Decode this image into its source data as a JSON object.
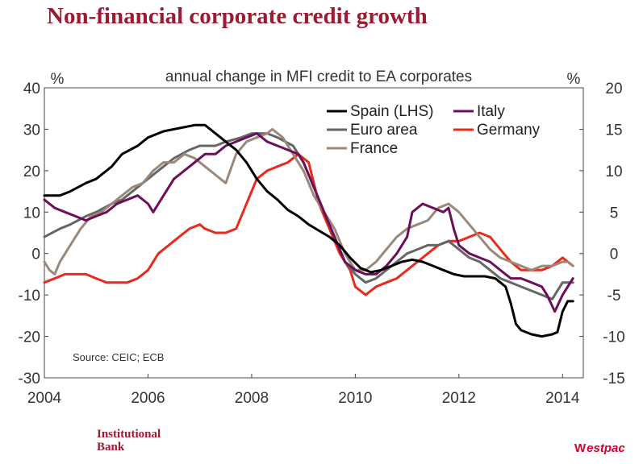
{
  "page": {
    "title": "Non-financial corporate credit growth",
    "brand_left_line1": "Institutional",
    "brand_left_line2": "Bank",
    "brand_right_mark": "W",
    "brand_right_text": "estpac"
  },
  "colors": {
    "title": "#9b1b30",
    "spain": "#000000",
    "italy": "#6b0f5a",
    "euro_area": "#666666",
    "germany": "#e8291c",
    "france": "#9c8878",
    "brand_red": "#d5002b"
  },
  "chart_data": {
    "type": "line",
    "title": "annual change in MFI credit to EA corporates",
    "left_axis_label": "%",
    "right_axis_label": "%",
    "source": "Source: CEIC; ECB",
    "xlim": [
      2004,
      2014.4
    ],
    "x_ticks": [
      2004,
      2006,
      2008,
      2010,
      2012,
      2014
    ],
    "x_tick_labels": [
      "2004",
      "2006",
      "2008",
      "2010",
      "2012",
      "2014"
    ],
    "left_ylim": [
      -30,
      40
    ],
    "left_ticks": [
      40,
      30,
      20,
      10,
      0,
      -10,
      -20,
      -30
    ],
    "left_tick_labels": [
      "40",
      "30",
      "20",
      "10",
      "0",
      "-10",
      "-20",
      "-30"
    ],
    "right_ylim": [
      -15,
      20
    ],
    "right_ticks": [
      20,
      15,
      10,
      5,
      0,
      -5,
      -10,
      -15
    ],
    "right_tick_labels": [
      "20",
      "15",
      "10",
      "5",
      "0",
      "-5",
      "-10",
      "-15"
    ],
    "series": [
      {
        "name": "Spain (LHS)",
        "axis": "left",
        "color_key": "spain",
        "points": [
          [
            2004.0,
            14
          ],
          [
            2004.3,
            14
          ],
          [
            2004.5,
            15
          ],
          [
            2004.8,
            17
          ],
          [
            2005.0,
            18
          ],
          [
            2005.3,
            21
          ],
          [
            2005.5,
            24
          ],
          [
            2005.8,
            26
          ],
          [
            2006.0,
            28
          ],
          [
            2006.3,
            29.5
          ],
          [
            2006.5,
            30
          ],
          [
            2006.7,
            30.5
          ],
          [
            2006.9,
            31
          ],
          [
            2007.1,
            31
          ],
          [
            2007.3,
            29
          ],
          [
            2007.5,
            27
          ],
          [
            2007.7,
            25
          ],
          [
            2007.9,
            22
          ],
          [
            2008.1,
            18
          ],
          [
            2008.3,
            15
          ],
          [
            2008.5,
            13
          ],
          [
            2008.7,
            10.5
          ],
          [
            2008.9,
            9
          ],
          [
            2009.1,
            7
          ],
          [
            2009.3,
            5.5
          ],
          [
            2009.5,
            4
          ],
          [
            2009.7,
            2
          ],
          [
            2009.9,
            -1
          ],
          [
            2010.1,
            -3.5
          ],
          [
            2010.3,
            -4.5
          ],
          [
            2010.5,
            -4
          ],
          [
            2010.7,
            -3
          ],
          [
            2010.9,
            -2
          ],
          [
            2011.1,
            -1.5
          ],
          [
            2011.3,
            -2
          ],
          [
            2011.5,
            -3
          ],
          [
            2011.7,
            -4
          ],
          [
            2011.9,
            -5
          ],
          [
            2012.1,
            -5.5
          ],
          [
            2012.3,
            -5.5
          ],
          [
            2012.5,
            -5.5
          ],
          [
            2012.7,
            -6
          ],
          [
            2012.8,
            -7
          ],
          [
            2012.9,
            -8
          ],
          [
            2013.0,
            -12
          ],
          [
            2013.1,
            -17
          ],
          [
            2013.2,
            -18.5
          ],
          [
            2013.4,
            -19.5
          ],
          [
            2013.6,
            -20
          ],
          [
            2013.8,
            -19.5
          ],
          [
            2013.9,
            -19
          ],
          [
            2014.0,
            -14
          ],
          [
            2014.1,
            -11.5
          ],
          [
            2014.2,
            -11.5
          ]
        ]
      },
      {
        "name": "Italy",
        "axis": "right",
        "color_key": "italy",
        "points": [
          [
            2004.0,
            6.5
          ],
          [
            2004.2,
            5.5
          ],
          [
            2004.4,
            5
          ],
          [
            2004.6,
            4.5
          ],
          [
            2004.8,
            4
          ],
          [
            2005.0,
            4.5
          ],
          [
            2005.2,
            5
          ],
          [
            2005.4,
            6
          ],
          [
            2005.6,
            6.5
          ],
          [
            2005.8,
            7
          ],
          [
            2006.0,
            6
          ],
          [
            2006.1,
            5
          ],
          [
            2006.3,
            7
          ],
          [
            2006.5,
            9
          ],
          [
            2006.7,
            10
          ],
          [
            2006.9,
            11
          ],
          [
            2007.1,
            12
          ],
          [
            2007.3,
            12
          ],
          [
            2007.5,
            13
          ],
          [
            2007.7,
            13.5
          ],
          [
            2007.9,
            14
          ],
          [
            2008.1,
            14.5
          ],
          [
            2008.3,
            13.5
          ],
          [
            2008.5,
            13
          ],
          [
            2008.7,
            12.5
          ],
          [
            2008.9,
            12
          ],
          [
            2009.0,
            11
          ],
          [
            2009.2,
            8
          ],
          [
            2009.4,
            5
          ],
          [
            2009.6,
            2
          ],
          [
            2009.8,
            -1
          ],
          [
            2010.0,
            -2
          ],
          [
            2010.2,
            -2.5
          ],
          [
            2010.4,
            -2.5
          ],
          [
            2010.6,
            -1.5
          ],
          [
            2010.8,
            0
          ],
          [
            2011.0,
            2
          ],
          [
            2011.1,
            5
          ],
          [
            2011.3,
            6
          ],
          [
            2011.5,
            5.5
          ],
          [
            2011.7,
            5
          ],
          [
            2011.8,
            5.5
          ],
          [
            2011.9,
            3
          ],
          [
            2012.0,
            1
          ],
          [
            2012.2,
            0
          ],
          [
            2012.4,
            -0.5
          ],
          [
            2012.6,
            -1
          ],
          [
            2012.8,
            -2
          ],
          [
            2013.0,
            -3
          ],
          [
            2013.2,
            -3
          ],
          [
            2013.4,
            -3.5
          ],
          [
            2013.6,
            -4
          ],
          [
            2013.7,
            -5
          ],
          [
            2013.85,
            -7
          ],
          [
            2014.0,
            -5
          ],
          [
            2014.1,
            -4
          ],
          [
            2014.2,
            -3
          ]
        ]
      },
      {
        "name": "Euro area",
        "axis": "right",
        "color_key": "euro_area",
        "points": [
          [
            2004.0,
            2
          ],
          [
            2004.3,
            3
          ],
          [
            2004.5,
            3.5
          ],
          [
            2004.8,
            4.5
          ],
          [
            2005.0,
            5
          ],
          [
            2005.3,
            6
          ],
          [
            2005.5,
            6.5
          ],
          [
            2005.8,
            8
          ],
          [
            2006.0,
            9
          ],
          [
            2006.3,
            10.5
          ],
          [
            2006.5,
            11.5
          ],
          [
            2006.8,
            12.5
          ],
          [
            2007.0,
            13
          ],
          [
            2007.3,
            13
          ],
          [
            2007.5,
            13.5
          ],
          [
            2007.8,
            14
          ],
          [
            2008.0,
            14.5
          ],
          [
            2008.3,
            14.5
          ],
          [
            2008.5,
            14
          ],
          [
            2008.8,
            13
          ],
          [
            2009.0,
            11
          ],
          [
            2009.2,
            8
          ],
          [
            2009.4,
            5
          ],
          [
            2009.6,
            2
          ],
          [
            2009.8,
            -1
          ],
          [
            2010.0,
            -2.5
          ],
          [
            2010.2,
            -3.5
          ],
          [
            2010.4,
            -3
          ],
          [
            2010.6,
            -2
          ],
          [
            2010.8,
            -1
          ],
          [
            2011.0,
            0
          ],
          [
            2011.2,
            0.5
          ],
          [
            2011.4,
            1
          ],
          [
            2011.6,
            1
          ],
          [
            2011.8,
            1.5
          ],
          [
            2012.0,
            0.5
          ],
          [
            2012.2,
            -0.5
          ],
          [
            2012.4,
            -1
          ],
          [
            2012.6,
            -2
          ],
          [
            2012.8,
            -3
          ],
          [
            2013.0,
            -3.5
          ],
          [
            2013.2,
            -4
          ],
          [
            2013.4,
            -4.5
          ],
          [
            2013.6,
            -5
          ],
          [
            2013.8,
            -5.5
          ],
          [
            2014.0,
            -3.5
          ],
          [
            2014.2,
            -3.5
          ]
        ]
      },
      {
        "name": "Germany",
        "axis": "right",
        "color_key": "germany",
        "points": [
          [
            2004.0,
            -3.5
          ],
          [
            2004.2,
            -3
          ],
          [
            2004.4,
            -2.5
          ],
          [
            2004.6,
            -2.5
          ],
          [
            2004.8,
            -2.5
          ],
          [
            2005.0,
            -3
          ],
          [
            2005.2,
            -3.5
          ],
          [
            2005.4,
            -3.5
          ],
          [
            2005.6,
            -3.5
          ],
          [
            2005.8,
            -3
          ],
          [
            2006.0,
            -2
          ],
          [
            2006.2,
            0
          ],
          [
            2006.4,
            1
          ],
          [
            2006.6,
            2
          ],
          [
            2006.8,
            3
          ],
          [
            2007.0,
            3.5
          ],
          [
            2007.1,
            3
          ],
          [
            2007.3,
            2.5
          ],
          [
            2007.5,
            2.5
          ],
          [
            2007.7,
            3
          ],
          [
            2007.9,
            6
          ],
          [
            2008.1,
            9
          ],
          [
            2008.3,
            10
          ],
          [
            2008.5,
            10.5
          ],
          [
            2008.7,
            11
          ],
          [
            2008.9,
            12
          ],
          [
            2009.1,
            11
          ],
          [
            2009.3,
            6
          ],
          [
            2009.5,
            3
          ],
          [
            2009.7,
            0
          ],
          [
            2009.9,
            -2
          ],
          [
            2010.0,
            -4
          ],
          [
            2010.2,
            -5
          ],
          [
            2010.4,
            -4
          ],
          [
            2010.6,
            -3.5
          ],
          [
            2010.8,
            -3
          ],
          [
            2011.0,
            -2
          ],
          [
            2011.2,
            -1
          ],
          [
            2011.4,
            0
          ],
          [
            2011.6,
            1
          ],
          [
            2011.8,
            1.5
          ],
          [
            2012.0,
            1.5
          ],
          [
            2012.2,
            2
          ],
          [
            2012.4,
            2.5
          ],
          [
            2012.6,
            2
          ],
          [
            2012.8,
            0.5
          ],
          [
            2013.0,
            -1
          ],
          [
            2013.2,
            -2
          ],
          [
            2013.4,
            -2
          ],
          [
            2013.6,
            -2
          ],
          [
            2013.8,
            -1.5
          ],
          [
            2014.0,
            -0.5
          ],
          [
            2014.2,
            -1.5
          ]
        ]
      },
      {
        "name": "France",
        "axis": "right",
        "color_key": "france",
        "points": [
          [
            2004.0,
            -1
          ],
          [
            2004.1,
            -2
          ],
          [
            2004.2,
            -2.5
          ],
          [
            2004.3,
            -1
          ],
          [
            2004.5,
            1
          ],
          [
            2004.7,
            3
          ],
          [
            2004.9,
            4.5
          ],
          [
            2005.1,
            5
          ],
          [
            2005.3,
            6
          ],
          [
            2005.5,
            7
          ],
          [
            2005.7,
            8
          ],
          [
            2005.9,
            8.5
          ],
          [
            2006.1,
            10
          ],
          [
            2006.3,
            11
          ],
          [
            2006.5,
            11
          ],
          [
            2006.7,
            12
          ],
          [
            2006.9,
            11.5
          ],
          [
            2007.1,
            10.5
          ],
          [
            2007.3,
            9.5
          ],
          [
            2007.5,
            8.5
          ],
          [
            2007.7,
            12
          ],
          [
            2007.9,
            13.5
          ],
          [
            2008.1,
            14
          ],
          [
            2008.3,
            14.5
          ],
          [
            2008.4,
            15
          ],
          [
            2008.6,
            14
          ],
          [
            2008.8,
            12
          ],
          [
            2009.0,
            10
          ],
          [
            2009.2,
            7
          ],
          [
            2009.4,
            5
          ],
          [
            2009.6,
            3
          ],
          [
            2009.8,
            0
          ],
          [
            2010.0,
            -2
          ],
          [
            2010.2,
            -2
          ],
          [
            2010.4,
            -1
          ],
          [
            2010.6,
            0.5
          ],
          [
            2010.8,
            2
          ],
          [
            2011.0,
            3
          ],
          [
            2011.2,
            3.5
          ],
          [
            2011.4,
            4
          ],
          [
            2011.6,
            5.5
          ],
          [
            2011.8,
            6
          ],
          [
            2012.0,
            5
          ],
          [
            2012.2,
            3.5
          ],
          [
            2012.4,
            2
          ],
          [
            2012.6,
            0.5
          ],
          [
            2012.8,
            -0.5
          ],
          [
            2013.0,
            -1
          ],
          [
            2013.2,
            -1.5
          ],
          [
            2013.4,
            -2
          ],
          [
            2013.6,
            -1.5
          ],
          [
            2013.8,
            -1.5
          ],
          [
            2014.0,
            -1
          ],
          [
            2014.1,
            -1
          ],
          [
            2014.2,
            -1.5
          ]
        ]
      }
    ],
    "legend": [
      "Spain (LHS)",
      "Italy",
      "Euro area",
      "Germany",
      "France"
    ]
  }
}
